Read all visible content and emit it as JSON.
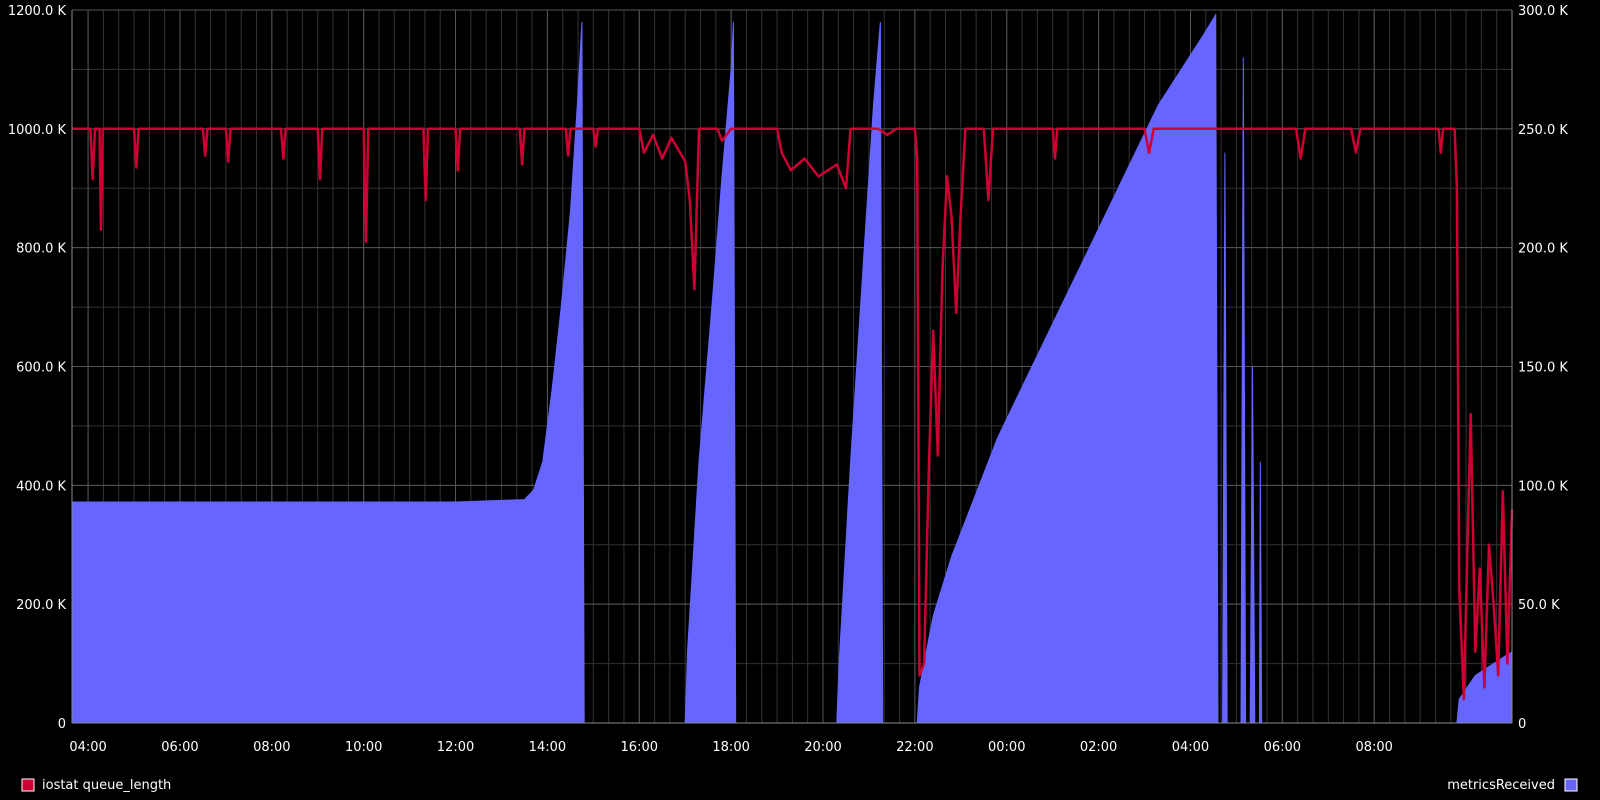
{
  "chart_data": {
    "type": "area",
    "x_ticks": [
      "04:00",
      "06:00",
      "08:00",
      "10:00",
      "12:00",
      "14:00",
      "16:00",
      "18:00",
      "20:00",
      "22:00",
      "00:00",
      "02:00",
      "04:00",
      "06:00",
      "08:00"
    ],
    "x_range": [
      3.65,
      33.7
    ],
    "y_left": {
      "range": [
        0,
        1200000
      ],
      "tick_labels": [
        "0",
        "200.0 K",
        "400.0 K",
        "600.0 K",
        "800.0 K",
        "1000.0 K",
        "1200.0 K"
      ],
      "tick_values": [
        0,
        200000,
        400000,
        600000,
        800000,
        1000000,
        1200000
      ]
    },
    "y_right": {
      "range": [
        0,
        300000
      ],
      "tick_labels": [
        "0",
        "50.0 K",
        "100.0 K",
        "150.0 K",
        "200.0 K",
        "250.0 K",
        "300.0 K"
      ],
      "tick_values": [
        0,
        50000,
        100000,
        150000,
        200000,
        250000,
        300000
      ]
    },
    "grid": true,
    "legend_placement": "bottom",
    "colors": {
      "background": "#000000",
      "grid": "#555555",
      "queue": "#cc0033",
      "metrics": "#6666ff",
      "axis_text": "#ffffff"
    },
    "series": [
      {
        "name": "iostat queue_length",
        "axis": "left",
        "kind": "line",
        "baseline": 1000000,
        "segments": [
          {
            "x_start": 3.65,
            "x_end": 22.05,
            "min": 860000,
            "note_values": []
          },
          {
            "x_start": 22.05,
            "x_end": 33.8,
            "min": 60000
          }
        ],
        "points": [
          [
            3.65,
            1000000
          ],
          [
            4.05,
            1000000
          ],
          [
            4.1,
            915000
          ],
          [
            4.15,
            1000000
          ],
          [
            4.25,
            1000000
          ],
          [
            4.28,
            830000
          ],
          [
            4.32,
            1000000
          ],
          [
            5.0,
            1000000
          ],
          [
            5.05,
            935000
          ],
          [
            5.1,
            1000000
          ],
          [
            6.5,
            1000000
          ],
          [
            6.55,
            955000
          ],
          [
            6.6,
            1000000
          ],
          [
            7.0,
            1000000
          ],
          [
            7.05,
            945000
          ],
          [
            7.1,
            1000000
          ],
          [
            8.2,
            1000000
          ],
          [
            8.25,
            950000
          ],
          [
            8.3,
            1000000
          ],
          [
            9.0,
            1000000
          ],
          [
            9.05,
            915000
          ],
          [
            9.1,
            1000000
          ],
          [
            10.0,
            1000000
          ],
          [
            10.05,
            810000
          ],
          [
            10.1,
            1000000
          ],
          [
            11.3,
            1000000
          ],
          [
            11.35,
            880000
          ],
          [
            11.4,
            1000000
          ],
          [
            12.0,
            1000000
          ],
          [
            12.05,
            930000
          ],
          [
            12.1,
            1000000
          ],
          [
            13.4,
            1000000
          ],
          [
            13.45,
            940000
          ],
          [
            13.5,
            1000000
          ],
          [
            14.4,
            1000000
          ],
          [
            14.45,
            955000
          ],
          [
            14.5,
            1000000
          ],
          [
            15.0,
            1000000
          ],
          [
            15.05,
            970000
          ],
          [
            15.1,
            1000000
          ],
          [
            16.0,
            1000000
          ],
          [
            16.1,
            960000
          ],
          [
            16.3,
            990000
          ],
          [
            16.5,
            950000
          ],
          [
            16.7,
            985000
          ],
          [
            17.0,
            945000
          ],
          [
            17.1,
            880000
          ],
          [
            17.2,
            730000
          ],
          [
            17.3,
            1000000
          ],
          [
            17.7,
            1000000
          ],
          [
            17.8,
            980000
          ],
          [
            18.0,
            1000000
          ],
          [
            19.0,
            1000000
          ],
          [
            19.1,
            960000
          ],
          [
            19.3,
            930000
          ],
          [
            19.6,
            950000
          ],
          [
            19.9,
            920000
          ],
          [
            20.3,
            940000
          ],
          [
            20.5,
            900000
          ],
          [
            20.6,
            1000000
          ],
          [
            21.2,
            1000000
          ],
          [
            21.4,
            990000
          ],
          [
            21.6,
            1000000
          ],
          [
            22.0,
            1000000
          ],
          [
            22.05,
            950000
          ],
          [
            22.1,
            80000
          ],
          [
            22.2,
            100000
          ],
          [
            22.3,
            420000
          ],
          [
            22.4,
            660000
          ],
          [
            22.5,
            450000
          ],
          [
            22.6,
            760000
          ],
          [
            22.7,
            920000
          ],
          [
            22.8,
            850000
          ],
          [
            22.9,
            690000
          ],
          [
            23.0,
            860000
          ],
          [
            23.1,
            1000000
          ],
          [
            23.5,
            1000000
          ],
          [
            23.6,
            880000
          ],
          [
            23.7,
            1000000
          ],
          [
            24.5,
            1000000
          ],
          [
            25.0,
            1000000
          ],
          [
            25.05,
            950000
          ],
          [
            25.1,
            1000000
          ],
          [
            27.0,
            1000000
          ],
          [
            27.1,
            960000
          ],
          [
            27.2,
            1000000
          ],
          [
            30.3,
            1000000
          ],
          [
            30.4,
            950000
          ],
          [
            30.5,
            1000000
          ],
          [
            31.5,
            1000000
          ],
          [
            31.6,
            960000
          ],
          [
            31.7,
            1000000
          ],
          [
            33.4,
            1000000
          ],
          [
            33.45,
            960000
          ],
          [
            33.5,
            1000000
          ],
          [
            33.75,
            1000000
          ],
          [
            33.8,
            900000
          ],
          [
            33.85,
            230000
          ],
          [
            33.95,
            40000
          ],
          [
            34.1,
            520000
          ],
          [
            34.2,
            120000
          ],
          [
            34.3,
            260000
          ],
          [
            34.4,
            60000
          ],
          [
            34.5,
            300000
          ],
          [
            34.6,
            200000
          ],
          [
            34.7,
            80000
          ],
          [
            34.8,
            390000
          ],
          [
            34.9,
            100000
          ],
          [
            35.0,
            360000
          ]
        ]
      },
      {
        "name": "metricsReceived",
        "axis": "right",
        "kind": "area",
        "points": [
          [
            3.65,
            93000
          ],
          [
            4.0,
            93000
          ],
          [
            6.0,
            93000
          ],
          [
            8.0,
            93000
          ],
          [
            10.0,
            93000
          ],
          [
            12.0,
            93000
          ],
          [
            13.5,
            94000
          ],
          [
            13.7,
            98000
          ],
          [
            13.9,
            110000
          ],
          [
            14.1,
            140000
          ],
          [
            14.3,
            175000
          ],
          [
            14.5,
            215000
          ],
          [
            14.65,
            260000
          ],
          [
            14.75,
            295000
          ],
          [
            14.8,
            0
          ],
          [
            17.0,
            0
          ],
          [
            17.05,
            30000
          ],
          [
            17.3,
            110000
          ],
          [
            17.6,
            180000
          ],
          [
            17.8,
            230000
          ],
          [
            18.0,
            275000
          ],
          [
            18.05,
            295000
          ],
          [
            18.1,
            0
          ],
          [
            20.3,
            0
          ],
          [
            20.35,
            25000
          ],
          [
            20.6,
            110000
          ],
          [
            20.9,
            200000
          ],
          [
            21.1,
            260000
          ],
          [
            21.25,
            295000
          ],
          [
            21.3,
            0
          ],
          [
            22.05,
            0
          ],
          [
            22.1,
            15000
          ],
          [
            22.4,
            45000
          ],
          [
            22.8,
            70000
          ],
          [
            23.3,
            95000
          ],
          [
            23.8,
            120000
          ],
          [
            24.3,
            140000
          ],
          [
            24.8,
            160000
          ],
          [
            25.3,
            180000
          ],
          [
            25.8,
            200000
          ],
          [
            26.3,
            220000
          ],
          [
            26.8,
            240000
          ],
          [
            27.3,
            260000
          ],
          [
            27.8,
            275000
          ],
          [
            28.3,
            290000
          ],
          [
            28.55,
            298000
          ],
          [
            28.6,
            0
          ],
          [
            28.7,
            0
          ],
          [
            28.75,
            240000
          ],
          [
            28.8,
            0
          ],
          [
            29.1,
            0
          ],
          [
            29.15,
            280000
          ],
          [
            29.2,
            0
          ],
          [
            29.3,
            0
          ],
          [
            29.35,
            150000
          ],
          [
            29.4,
            0
          ],
          [
            29.5,
            0
          ],
          [
            29.52,
            110000
          ],
          [
            29.55,
            0
          ],
          [
            33.8,
            0
          ],
          [
            33.85,
            10000
          ],
          [
            34.2,
            20000
          ],
          [
            34.6,
            25000
          ],
          [
            35.0,
            30000
          ]
        ]
      }
    ]
  },
  "legend": {
    "left_label": "iostat queue_length",
    "right_label": "metricsReceived"
  }
}
